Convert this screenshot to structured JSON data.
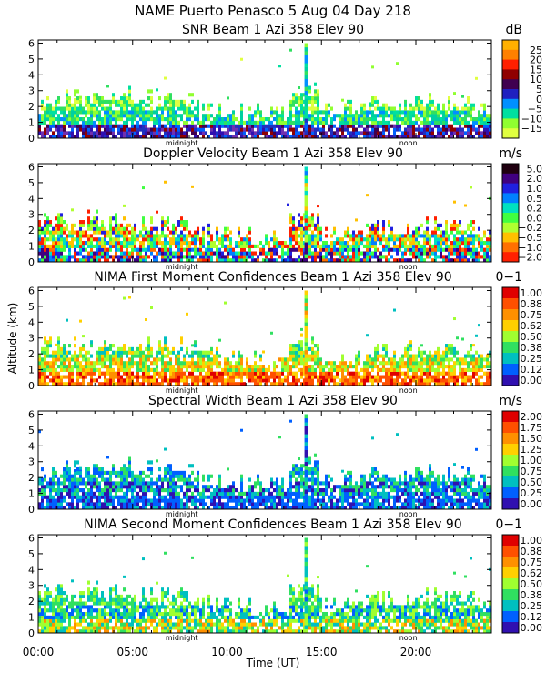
{
  "figure": {
    "title": "NAME Puerto Penasco    5 Aug 04 Day 218",
    "shared_ylabel": "Altitude (km)",
    "shared_xlabel": "Time (UT)",
    "x_tick_labels": [
      "00:00",
      "05:00",
      "10:00",
      "15:00",
      "20:00"
    ],
    "time_markers": [
      "midnight",
      "noon"
    ]
  },
  "chart_data": [
    {
      "type": "heatmap",
      "title": "SNR Beam 1 Azi 358 Elev 90",
      "units": "dB",
      "xlabel": "Time (UT)",
      "ylabel": "Altitude (km)",
      "xlim": [
        0,
        24
      ],
      "ylim": [
        0,
        6.2
      ],
      "y_ticks": [
        "0",
        "1",
        "2",
        "3",
        "4",
        "5",
        "6"
      ],
      "colorbar": {
        "labels": [
          "25",
          "20",
          "15",
          "10",
          "5",
          "0",
          "−5",
          "−10",
          "−15"
        ],
        "colors": [
          "#ffb000",
          "#ff8000",
          "#ff2000",
          "#900000",
          "#400050",
          "#2020c0",
          "#0090ff",
          "#00e0a0",
          "#90ff30",
          "#e0ff40"
        ]
      }
    },
    {
      "type": "heatmap",
      "title": "Doppler Velocity Beam 1 Azi 358 Elev 90",
      "units": "m/s",
      "xlabel": "Time (UT)",
      "ylabel": "Altitude (km)",
      "xlim": [
        0,
        24
      ],
      "ylim": [
        0,
        6.2
      ],
      "y_ticks": [
        "0",
        "1",
        "2",
        "3",
        "4",
        "5",
        "6"
      ],
      "colorbar": {
        "labels": [
          "5.0",
          "2.0",
          "1.0",
          "0.5",
          "0.2",
          "0.0",
          "−0.2",
          "−0.5",
          "−1.0",
          "−2.0"
        ],
        "colors": [
          "#200010",
          "#400080",
          "#2020e0",
          "#0080ff",
          "#00e0c0",
          "#40ff40",
          "#b0ff30",
          "#ffc000",
          "#ff7000",
          "#ff2000"
        ]
      }
    },
    {
      "type": "heatmap",
      "title": "NIMA First Moment Confidences Beam 1 Azi 358 Elev 90",
      "units": "0−1",
      "xlabel": "Time (UT)",
      "ylabel": "Altitude (km)",
      "xlim": [
        0,
        24
      ],
      "ylim": [
        0,
        6.2
      ],
      "y_ticks": [
        "0",
        "1",
        "2",
        "3",
        "4",
        "5",
        "6"
      ],
      "colorbar": {
        "labels": [
          "1.00",
          "0.88",
          "0.75",
          "0.62",
          "0.50",
          "0.38",
          "0.25",
          "0.12",
          "0.00"
        ],
        "colors": [
          "#e00000",
          "#ff5000",
          "#ff9000",
          "#ffd000",
          "#a0ff30",
          "#30e060",
          "#00c0c0",
          "#0060ff",
          "#3010b0"
        ]
      }
    },
    {
      "type": "heatmap",
      "title": "Spectral Width Beam 1 Azi 358 Elev 90",
      "units": "m/s",
      "xlabel": "Time (UT)",
      "ylabel": "Altitude (km)",
      "xlim": [
        0,
        24
      ],
      "ylim": [
        0,
        6.2
      ],
      "y_ticks": [
        "0",
        "1",
        "2",
        "3",
        "4",
        "5",
        "6"
      ],
      "colorbar": {
        "labels": [
          "2.00",
          "1.75",
          "1.50",
          "1.25",
          "1.00",
          "0.75",
          "0.50",
          "0.25",
          "0.00"
        ],
        "colors": [
          "#e00000",
          "#ff5000",
          "#ff9000",
          "#ffd000",
          "#a0ff30",
          "#30e060",
          "#00c0c0",
          "#0060ff",
          "#3010b0"
        ]
      }
    },
    {
      "type": "heatmap",
      "title": "NIMA Second Moment Confidences Beam 1 Azi 358 Elev 90",
      "units": "0−1",
      "xlabel": "Time (UT)",
      "ylabel": "Altitude (km)",
      "xlim": [
        0,
        24
      ],
      "ylim": [
        0,
        6.2
      ],
      "y_ticks": [
        "0",
        "1",
        "2",
        "3",
        "4",
        "5",
        "6"
      ],
      "colorbar": {
        "labels": [
          "1.00",
          "0.88",
          "0.75",
          "0.62",
          "0.50",
          "0.38",
          "0.25",
          "0.12",
          "0.00"
        ],
        "colors": [
          "#e00000",
          "#ff5000",
          "#ff9000",
          "#ffd000",
          "#a0ff30",
          "#30e060",
          "#00c0c0",
          "#0060ff",
          "#3010b0"
        ]
      }
    }
  ]
}
